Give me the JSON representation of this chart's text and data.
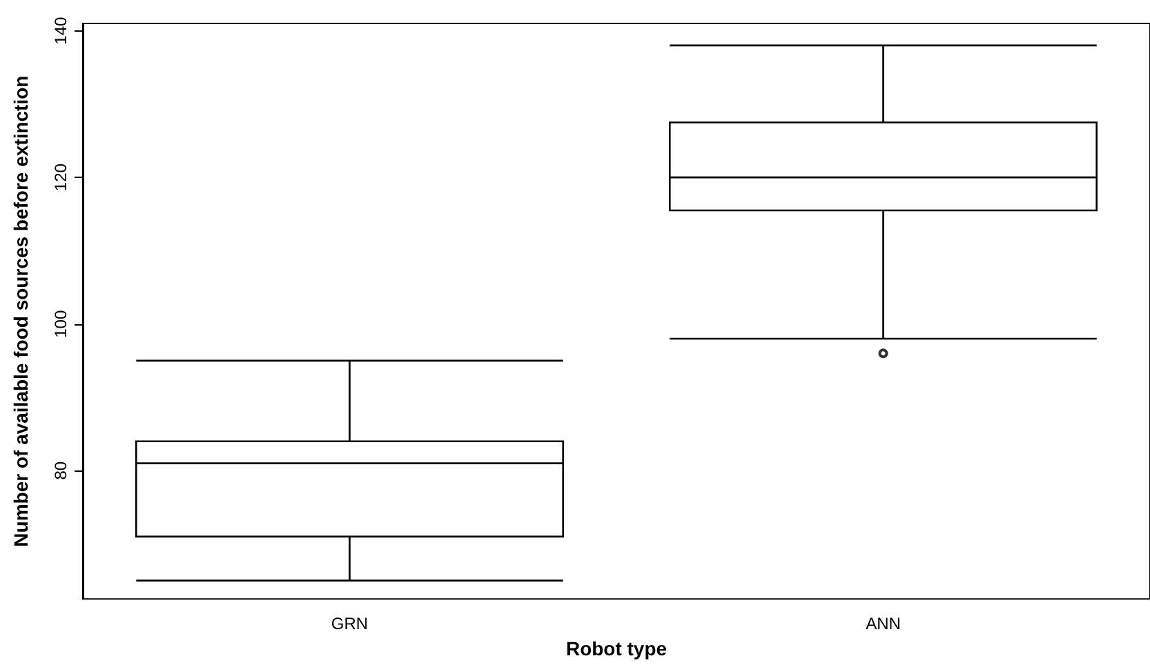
{
  "chart_data": {
    "type": "box",
    "xlabel": "Robot type",
    "ylabel": "Number of available food sources before extinction",
    "categories": [
      "GRN",
      "ANN"
    ],
    "boxes": [
      {
        "low": 65,
        "q1": 71,
        "median": 81,
        "q3": 84,
        "high": 95
      },
      {
        "low": 98,
        "q1": 115.5,
        "median": 120,
        "q3": 127.5,
        "high": 138,
        "outliers": [
          96
        ]
      }
    ],
    "color": "#000000",
    "ylim": [
      62.5,
      141
    ],
    "yticks": [
      80,
      100,
      120,
      140
    ],
    "grid": false
  }
}
